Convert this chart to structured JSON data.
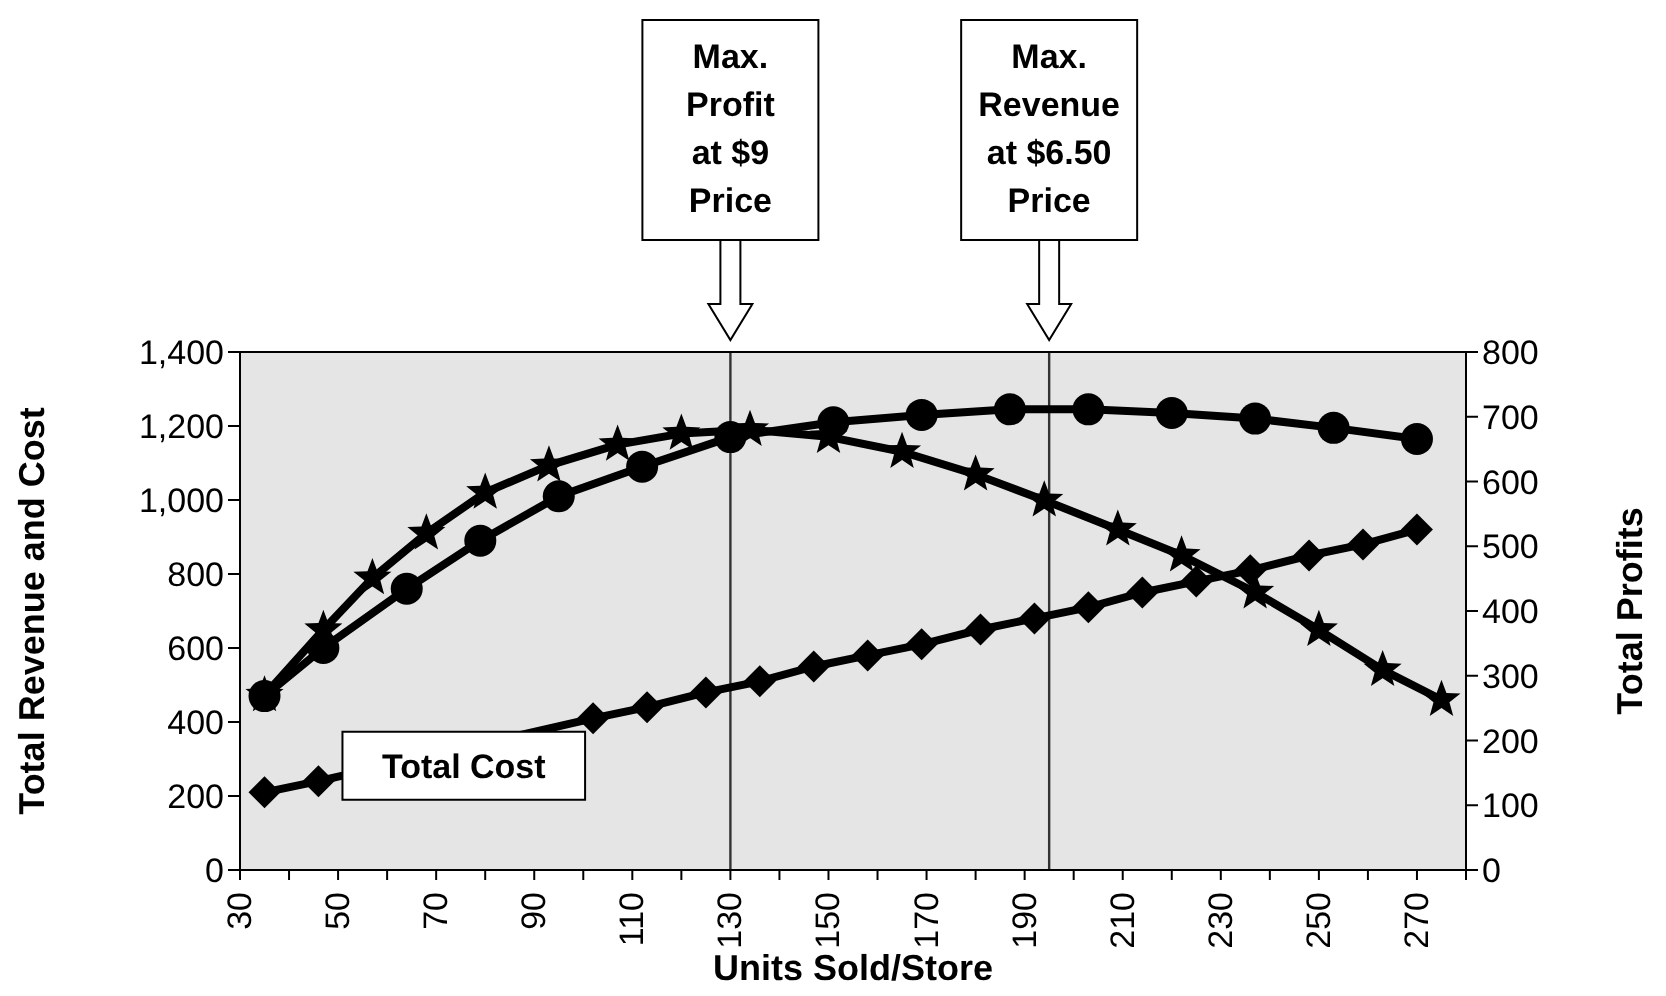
{
  "chart_data": {
    "type": "line",
    "xlabel": "Units Sold/Store",
    "ylabel": "Total Revenue and Cost",
    "y2label": "Total Profits",
    "xlim": [
      30,
      280
    ],
    "xticks": [
      30,
      {
        "value": 40,
        "label": null
      },
      50,
      {
        "value": 60,
        "label": null
      },
      70,
      {
        "value": 80,
        "label": null
      },
      90,
      {
        "value": 100,
        "label": null
      },
      110,
      {
        "value": 120,
        "label": null
      },
      130,
      {
        "value": 140,
        "label": null
      },
      150,
      {
        "value": 160,
        "label": null
      },
      170,
      {
        "value": 180,
        "label": null
      },
      190,
      {
        "value": 200,
        "label": null
      },
      210,
      {
        "value": 220,
        "label": null
      },
      230,
      {
        "value": 240,
        "label": null
      },
      250,
      {
        "value": 260,
        "label": null
      },
      270,
      {
        "value": 280,
        "label": null
      }
    ],
    "ylim": [
      0,
      1400
    ],
    "yticks": [
      0,
      200,
      400,
      600,
      800,
      {
        "value": 1000,
        "label": "1,000"
      },
      {
        "value": 1200,
        "label": "1,200"
      },
      {
        "value": 1400,
        "label": "1,400"
      }
    ],
    "y2lim": [
      0,
      800
    ],
    "y2ticks": [
      0,
      100,
      200,
      300,
      400,
      500,
      600,
      700,
      800
    ],
    "series": [
      {
        "color": "#000000",
        "marker": "circle",
        "x": [
          35,
          47,
          64,
          79,
          95,
          112,
          130,
          151,
          169,
          187,
          203,
          220,
          237,
          253,
          270
        ],
        "values": [
          470,
          600,
          760,
          890,
          1010,
          1090,
          1170,
          1210,
          1230,
          1245,
          1245,
          1235,
          1220,
          1195,
          1165
        ]
      },
      {
        "color": "#000000",
        "marker": "star",
        "axis": "y2",
        "x": [
          35,
          47,
          57,
          68,
          80,
          93,
          107,
          120,
          134,
          150,
          165,
          180,
          194,
          209,
          222,
          237,
          250,
          263,
          275
        ],
        "values": [
          270,
          371,
          451,
          520,
          583,
          625,
          657,
          674,
          680,
          669,
          646,
          611,
          571,
          526,
          486,
          429,
          371,
          309,
          263
        ]
      },
      {
        "name": "Total Cost",
        "color": "#000000",
        "marker": "diamond",
        "x": [
          35,
          46,
          57,
          69,
          80,
          91,
          102,
          113,
          125,
          136,
          147,
          158,
          169,
          181,
          192,
          203,
          214,
          225,
          236,
          248,
          259,
          270
        ],
        "values": [
          210,
          240,
          null,
          null,
          null,
          null,
          410,
          440,
          480,
          510,
          550,
          580,
          610,
          650,
          680,
          710,
          750,
          780,
          810,
          850,
          880,
          920
        ]
      }
    ],
    "ref_lines": [
      {
        "axis": "x",
        "value": 130,
        "color": "#333333"
      },
      {
        "axis": "x",
        "value": 195,
        "color": "#333333"
      }
    ],
    "annotations": [
      "Max.\nProfit\nat $9\nPrice",
      "Max.\nRevenue\nat $6.50\nPrice"
    ]
  }
}
